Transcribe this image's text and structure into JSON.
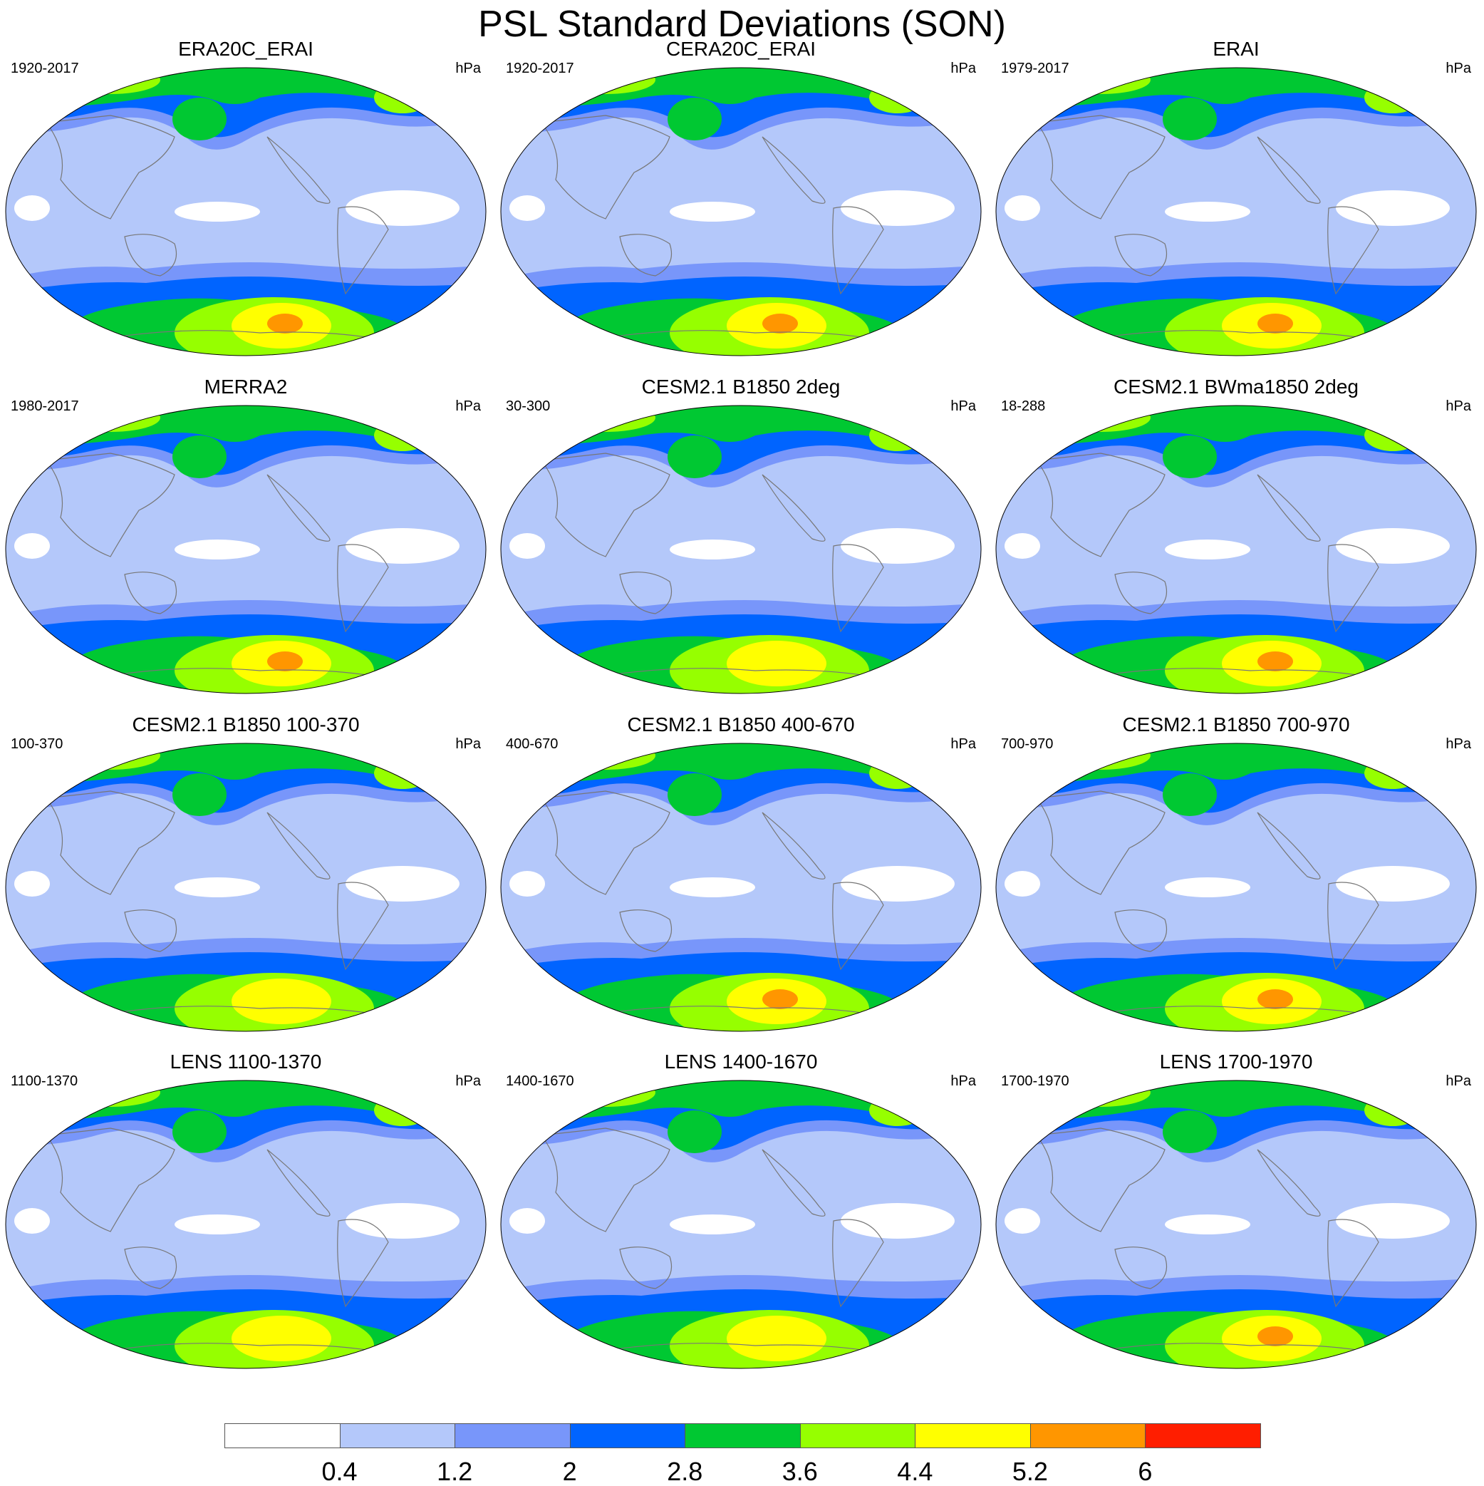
{
  "title": "PSL Standard Deviations (SON)",
  "units": "hPa",
  "colorbar": {
    "colors": [
      "#ffffff",
      "#b4c8fa",
      "#7896fa",
      "#0064ff",
      "#00c832",
      "#96ff00",
      "#ffff00",
      "#ff9600",
      "#ff1e00"
    ],
    "labels": [
      "0.4",
      "1.2",
      "2",
      "2.8",
      "3.6",
      "4.4",
      "5.2",
      "6"
    ]
  },
  "panels": [
    {
      "title": "ERA20C_ERAI",
      "period": "1920-2017",
      "units": "hPa",
      "south_peak": 6.0,
      "north_peak": 4.2
    },
    {
      "title": "CERA20C_ERAI",
      "period": "1920-2017",
      "units": "hPa",
      "south_peak": 5.6,
      "north_peak": 4.0
    },
    {
      "title": "ERAI",
      "period": "1979-2017",
      "units": "hPa",
      "south_peak": 5.4,
      "north_peak": 4.0
    },
    {
      "title": "MERRA2",
      "period": "1980-2017",
      "units": "hPa",
      "south_peak": 5.6,
      "north_peak": 3.8
    },
    {
      "title": "CESM2.1 B1850 2deg",
      "period": "30-300",
      "units": "hPa",
      "south_peak": 5.0,
      "north_peak": 4.6
    },
    {
      "title": "CESM2.1 BWma1850 2deg",
      "period": "18-288",
      "units": "hPa",
      "south_peak": 6.0,
      "north_peak": 4.8
    },
    {
      "title": "CESM2.1 B1850 100-370",
      "period": "100-370",
      "units": "hPa",
      "south_peak": 5.0,
      "north_peak": 4.8
    },
    {
      "title": "CESM2.1 B1850 400-670",
      "period": "400-670",
      "units": "hPa",
      "south_peak": 5.6,
      "north_peak": 4.6
    },
    {
      "title": "CESM2.1 B1850 700-970",
      "period": "700-970",
      "units": "hPa",
      "south_peak": 5.6,
      "north_peak": 4.6
    },
    {
      "title": "LENS 1100-1370",
      "period": "1100-1370",
      "units": "hPa",
      "south_peak": 5.0,
      "north_peak": 4.6
    },
    {
      "title": "LENS 1400-1670",
      "period": "1400-1670",
      "units": "hPa",
      "south_peak": 5.0,
      "north_peak": 4.6
    },
    {
      "title": "LENS 1700-1970",
      "period": "1700-1970",
      "units": "hPa",
      "south_peak": 5.4,
      "north_peak": 4.6
    }
  ]
}
